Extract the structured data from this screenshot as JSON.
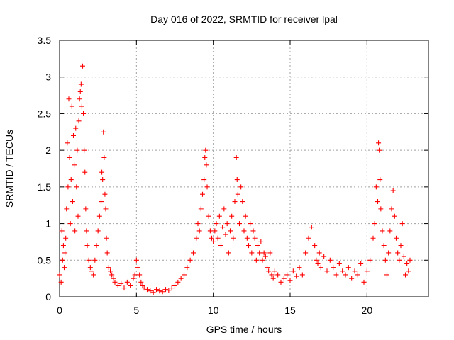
{
  "chart_data": {
    "type": "scatter",
    "title": "Day 016 of 2022, SRMTID for receiver lpal",
    "xlabel": "GPS time / hours",
    "ylabel": "SRMTID / TECUs",
    "xlim": [
      0,
      24
    ],
    "ylim": [
      0,
      3.5
    ],
    "x_ticks": [
      0,
      5,
      10,
      15,
      20
    ],
    "x_tick_labels": [
      "0",
      "5",
      "10",
      "15",
      "20"
    ],
    "y_ticks": [
      0,
      0.5,
      1,
      1.5,
      2,
      2.5,
      3,
      3.5
    ],
    "y_tick_labels": [
      "0",
      "0.5",
      "1",
      "1.5",
      "2",
      "2.5",
      "3",
      "3.5"
    ],
    "grid": true,
    "marker": "+",
    "color": "#ff0000",
    "series": [
      {
        "name": "SRMTID",
        "x": [
          0.0,
          0.1,
          0.15,
          0.2,
          0.25,
          0.3,
          0.35,
          0.4,
          0.45,
          0.5,
          0.55,
          0.6,
          0.65,
          0.7,
          0.75,
          0.8,
          0.85,
          0.9,
          0.95,
          1.0,
          1.05,
          1.1,
          1.15,
          1.2,
          1.25,
          1.3,
          1.35,
          1.4,
          1.45,
          1.5,
          1.55,
          1.6,
          1.65,
          1.7,
          1.75,
          1.8,
          1.9,
          2.0,
          2.1,
          2.2,
          2.3,
          2.4,
          2.5,
          2.6,
          2.7,
          2.75,
          2.8,
          2.85,
          2.9,
          2.95,
          3.0,
          3.05,
          3.1,
          3.2,
          3.3,
          3.4,
          3.5,
          3.6,
          3.8,
          4.0,
          4.2,
          4.4,
          4.6,
          4.8,
          4.9,
          5.0,
          5.1,
          5.2,
          5.3,
          5.4,
          5.5,
          5.7,
          5.9,
          6.1,
          6.3,
          6.5,
          6.7,
          6.9,
          7.1,
          7.3,
          7.5,
          7.7,
          7.9,
          8.1,
          8.3,
          8.5,
          8.7,
          8.9,
          9.0,
          9.1,
          9.2,
          9.3,
          9.4,
          9.45,
          9.5,
          9.55,
          9.6,
          9.7,
          9.8,
          9.9,
          10.0,
          10.1,
          10.2,
          10.3,
          10.4,
          10.5,
          10.6,
          10.7,
          10.8,
          10.9,
          11.0,
          11.1,
          11.2,
          11.3,
          11.4,
          11.5,
          11.55,
          11.6,
          11.7,
          11.8,
          11.9,
          12.0,
          12.1,
          12.2,
          12.3,
          12.4,
          12.5,
          12.6,
          12.7,
          12.8,
          12.9,
          13.0,
          13.1,
          13.2,
          13.3,
          13.4,
          13.5,
          13.6,
          13.7,
          13.8,
          13.9,
          14.0,
          14.2,
          14.4,
          14.6,
          14.8,
          15.0,
          15.2,
          15.4,
          15.6,
          15.8,
          16.0,
          16.2,
          16.4,
          16.6,
          16.7,
          16.8,
          16.9,
          17.0,
          17.2,
          17.4,
          17.6,
          17.8,
          18.0,
          18.2,
          18.4,
          18.6,
          18.8,
          19.0,
          19.2,
          19.4,
          19.6,
          19.8,
          20.0,
          20.2,
          20.4,
          20.5,
          20.6,
          20.7,
          20.75,
          20.8,
          20.85,
          20.9,
          21.0,
          21.1,
          21.2,
          21.3,
          21.4,
          21.5,
          21.6,
          21.7,
          21.8,
          21.9,
          22.0,
          22.1,
          22.2,
          22.3,
          22.4,
          22.5,
          22.6,
          22.7,
          22.8
        ],
        "y": [
          0.3,
          0.2,
          0.9,
          0.5,
          0.7,
          0.4,
          0.6,
          0.8,
          1.2,
          2.1,
          1.5,
          2.7,
          1.9,
          1.0,
          1.6,
          2.6,
          1.3,
          2.2,
          1.8,
          0.9,
          2.3,
          1.5,
          2.0,
          1.1,
          2.4,
          2.7,
          2.8,
          2.9,
          2.6,
          3.15,
          2.5,
          2.0,
          1.7,
          1.2,
          0.9,
          0.7,
          0.5,
          0.4,
          0.35,
          0.3,
          0.5,
          0.7,
          0.9,
          1.1,
          1.3,
          1.7,
          1.6,
          2.25,
          1.9,
          1.4,
          1.2,
          0.8,
          0.6,
          0.4,
          0.35,
          0.3,
          0.25,
          0.2,
          0.15,
          0.18,
          0.12,
          0.2,
          0.15,
          0.25,
          0.3,
          0.5,
          0.4,
          0.3,
          0.2,
          0.15,
          0.12,
          0.1,
          0.08,
          0.06,
          0.1,
          0.08,
          0.07,
          0.1,
          0.09,
          0.12,
          0.15,
          0.2,
          0.25,
          0.3,
          0.4,
          0.5,
          0.6,
          0.8,
          1.0,
          0.9,
          1.2,
          1.4,
          1.6,
          1.9,
          2.0,
          1.8,
          1.5,
          1.1,
          0.9,
          0.8,
          0.75,
          0.9,
          1.0,
          0.8,
          1.1,
          0.7,
          0.95,
          1.2,
          0.85,
          1.0,
          0.6,
          0.9,
          1.1,
          0.8,
          1.3,
          1.9,
          1.6,
          1.4,
          1.0,
          1.5,
          1.3,
          0.9,
          1.1,
          0.8,
          0.7,
          1.0,
          0.6,
          0.9,
          0.8,
          0.5,
          0.7,
          0.6,
          0.75,
          0.5,
          0.6,
          0.55,
          0.4,
          0.35,
          0.6,
          0.3,
          0.25,
          0.35,
          0.3,
          0.2,
          0.25,
          0.3,
          0.22,
          0.35,
          0.28,
          0.4,
          0.3,
          0.6,
          0.8,
          0.95,
          0.7,
          0.5,
          0.45,
          0.6,
          0.4,
          0.55,
          0.35,
          0.5,
          0.4,
          0.3,
          0.45,
          0.35,
          0.3,
          0.4,
          0.25,
          0.35,
          0.3,
          0.45,
          0.2,
          0.35,
          0.5,
          0.8,
          1.0,
          1.5,
          1.3,
          2.1,
          2.0,
          1.6,
          1.2,
          0.9,
          0.7,
          0.5,
          0.3,
          0.6,
          0.9,
          1.2,
          1.45,
          1.1,
          0.8,
          0.6,
          0.5,
          0.7,
          1.0,
          0.55,
          0.3,
          0.45,
          0.35,
          0.5
        ]
      }
    ]
  }
}
